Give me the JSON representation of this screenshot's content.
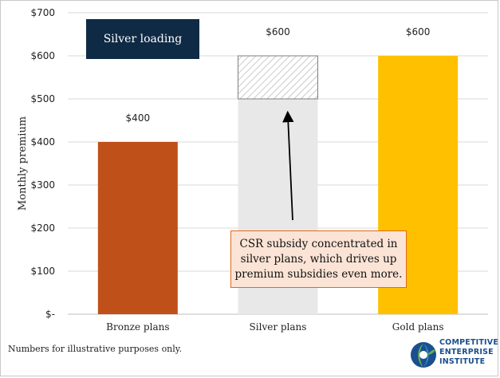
{
  "chart_data": {
    "type": "bar",
    "ylabel": "Monthly premium",
    "categories": [
      "Bronze plans",
      "Silver plans",
      "Gold plans"
    ],
    "series": [
      {
        "values": [
          400,
          500,
          600
        ]
      },
      {
        "values": [
          0,
          100,
          0
        ]
      }
    ],
    "totals": [
      400,
      600,
      600
    ],
    "data_labels": [
      "$400",
      "$600",
      "$600"
    ],
    "ylim": [
      0,
      700
    ],
    "yticks": [
      0,
      100,
      200,
      300,
      400,
      500,
      600,
      700
    ],
    "ytick_labels": [
      "$-",
      "$100",
      "$200",
      "$300",
      "$400",
      "$500",
      "$600",
      "$700"
    ],
    "bar_colors": [
      "#c0501a",
      "#e8e8e8",
      "#ffc000"
    ],
    "loading_fill": "hatched",
    "grid": true,
    "annotations": {
      "silver_loading": "Silver loading",
      "csr_note": [
        "CSR subsidy concentrated in",
        "silver plans, which drives up",
        "premium subsidies even more."
      ]
    }
  },
  "colors": {
    "navy": "#0f2a44",
    "note_fill": "#fbe4d6",
    "note_border": "#e06a1f",
    "grid": "#d9d9d9"
  },
  "footnote": "Numbers for illustrative purposes only.",
  "logo": {
    "lines": [
      "COMPETITIVE",
      "ENTERPRISE",
      "INSTITUTE"
    ],
    "icon": "globe-leaf-icon"
  }
}
